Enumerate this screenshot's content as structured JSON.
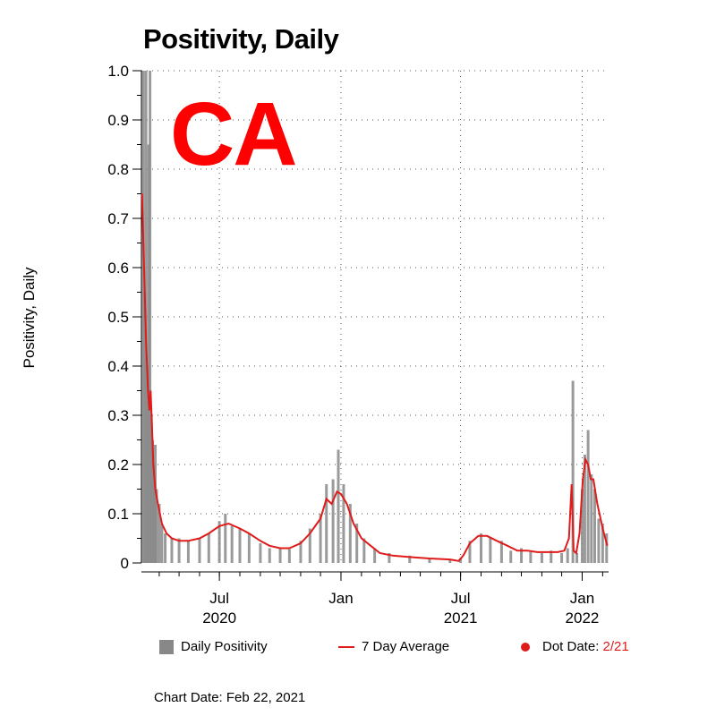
{
  "title": "Positivity, Daily",
  "state_label": "CA",
  "y_axis_label": "Positivity, Daily",
  "legend": {
    "daily_label": "Daily Positivity",
    "avg_label": "7 Day Average",
    "dot_label": "Dot Date:",
    "dot_date": "2/21"
  },
  "footer": "Chart Date: Feb 22, 2021",
  "colors": {
    "bars": "#888888",
    "average": "#e01b1b",
    "state": "#ff0000"
  },
  "chart_data": {
    "type": "bar",
    "title": "Positivity, Daily",
    "ylabel": "Positivity, Daily",
    "xlabel": "",
    "ylim": [
      0,
      1.0
    ],
    "xlim": [
      "2020-03-05",
      "2022-02-10"
    ],
    "yticks": [
      "0",
      "0.1",
      "0.2",
      "0.3",
      "0.4",
      "0.5",
      "0.6",
      "0.7",
      "0.8",
      "0.9",
      "1.0"
    ],
    "xticks": [
      {
        "date": "2020-07-01",
        "label": "Jul",
        "year": "2020"
      },
      {
        "date": "2021-01-01",
        "label": "Jan",
        "year": ""
      },
      {
        "date": "2021-07-01",
        "label": "Jul",
        "year": "2021"
      },
      {
        "date": "2022-01-01",
        "label": "Jan",
        "year": "2022"
      }
    ],
    "grid": true,
    "series": [
      {
        "name": "Daily Positivity",
        "kind": "bar",
        "points": [
          [
            "2020-03-08",
            1.0
          ],
          [
            "2020-03-10",
            0.55
          ],
          [
            "2020-03-12",
            1.0
          ],
          [
            "2020-03-14",
            0.4
          ],
          [
            "2020-03-16",
            0.85
          ],
          [
            "2020-03-18",
            1.0
          ],
          [
            "2020-03-20",
            0.3
          ],
          [
            "2020-03-22",
            0.25
          ],
          [
            "2020-03-24",
            0.2
          ],
          [
            "2020-03-26",
            0.24
          ],
          [
            "2020-03-28",
            0.15
          ],
          [
            "2020-04-01",
            0.12
          ],
          [
            "2020-04-05",
            0.08
          ],
          [
            "2020-04-10",
            0.06
          ],
          [
            "2020-04-20",
            0.05
          ],
          [
            "2020-05-01",
            0.05
          ],
          [
            "2020-05-15",
            0.045
          ],
          [
            "2020-06-01",
            0.05
          ],
          [
            "2020-06-15",
            0.06
          ],
          [
            "2020-07-01",
            0.085
          ],
          [
            "2020-07-10",
            0.1
          ],
          [
            "2020-07-20",
            0.075
          ],
          [
            "2020-08-01",
            0.07
          ],
          [
            "2020-08-15",
            0.06
          ],
          [
            "2020-09-01",
            0.04
          ],
          [
            "2020-09-15",
            0.03
          ],
          [
            "2020-10-01",
            0.03
          ],
          [
            "2020-10-15",
            0.028
          ],
          [
            "2020-11-01",
            0.045
          ],
          [
            "2020-11-15",
            0.07
          ],
          [
            "2020-12-01",
            0.1
          ],
          [
            "2020-12-10",
            0.16
          ],
          [
            "2020-12-20",
            0.17
          ],
          [
            "2020-12-28",
            0.23
          ],
          [
            "2021-01-05",
            0.16
          ],
          [
            "2021-01-15",
            0.12
          ],
          [
            "2021-01-25",
            0.08
          ],
          [
            "2021-02-05",
            0.05
          ],
          [
            "2021-02-21",
            0.03
          ],
          [
            "2021-03-15",
            0.02
          ],
          [
            "2021-04-15",
            0.015
          ],
          [
            "2021-05-15",
            0.01
          ],
          [
            "2021-06-15",
            0.008
          ],
          [
            "2021-07-01",
            0.01
          ],
          [
            "2021-07-15",
            0.045
          ],
          [
            "2021-08-01",
            0.06
          ],
          [
            "2021-08-15",
            0.05
          ],
          [
            "2021-09-01",
            0.045
          ],
          [
            "2021-09-15",
            0.025
          ],
          [
            "2021-10-01",
            0.03
          ],
          [
            "2021-10-15",
            0.022
          ],
          [
            "2021-11-01",
            0.02
          ],
          [
            "2021-11-15",
            0.025
          ],
          [
            "2021-12-01",
            0.02
          ],
          [
            "2021-12-10",
            0.03
          ],
          [
            "2021-12-18",
            0.37
          ],
          [
            "2021-12-24",
            0.02
          ],
          [
            "2022-01-01",
            0.15
          ],
          [
            "2022-01-05",
            0.22
          ],
          [
            "2022-01-10",
            0.27
          ],
          [
            "2022-01-15",
            0.18
          ],
          [
            "2022-01-20",
            0.15
          ],
          [
            "2022-01-26",
            0.09
          ],
          [
            "2022-02-01",
            0.08
          ],
          [
            "2022-02-07",
            0.06
          ]
        ]
      },
      {
        "name": "7 Day Average",
        "kind": "line",
        "points": [
          [
            "2020-03-06",
            0.75
          ],
          [
            "2020-03-08",
            0.65
          ],
          [
            "2020-03-10",
            0.55
          ],
          [
            "2020-03-12",
            0.45
          ],
          [
            "2020-03-15",
            0.35
          ],
          [
            "2020-03-17",
            0.31
          ],
          [
            "2020-03-19",
            0.35
          ],
          [
            "2020-03-21",
            0.28
          ],
          [
            "2020-03-23",
            0.2
          ],
          [
            "2020-03-26",
            0.15
          ],
          [
            "2020-03-30",
            0.12
          ],
          [
            "2020-04-05",
            0.08
          ],
          [
            "2020-04-12",
            0.06
          ],
          [
            "2020-04-20",
            0.05
          ],
          [
            "2020-05-01",
            0.045
          ],
          [
            "2020-05-15",
            0.045
          ],
          [
            "2020-06-01",
            0.05
          ],
          [
            "2020-06-15",
            0.06
          ],
          [
            "2020-07-01",
            0.075
          ],
          [
            "2020-07-15",
            0.08
          ],
          [
            "2020-08-01",
            0.07
          ],
          [
            "2020-08-15",
            0.06
          ],
          [
            "2020-09-01",
            0.045
          ],
          [
            "2020-09-15",
            0.035
          ],
          [
            "2020-10-01",
            0.03
          ],
          [
            "2020-10-15",
            0.03
          ],
          [
            "2020-11-01",
            0.04
          ],
          [
            "2020-11-15",
            0.06
          ],
          [
            "2020-12-01",
            0.09
          ],
          [
            "2020-12-10",
            0.13
          ],
          [
            "2020-12-18",
            0.12
          ],
          [
            "2020-12-26",
            0.145
          ],
          [
            "2021-01-01",
            0.14
          ],
          [
            "2021-01-10",
            0.12
          ],
          [
            "2021-01-20",
            0.08
          ],
          [
            "2021-02-01",
            0.05
          ],
          [
            "2021-02-15",
            0.035
          ],
          [
            "2021-03-01",
            0.02
          ],
          [
            "2021-03-20",
            0.015
          ],
          [
            "2021-04-15",
            0.012
          ],
          [
            "2021-05-15",
            0.009
          ],
          [
            "2021-06-15",
            0.007
          ],
          [
            "2021-06-28",
            0.004
          ],
          [
            "2021-07-05",
            0.015
          ],
          [
            "2021-07-15",
            0.04
          ],
          [
            "2021-07-28",
            0.055
          ],
          [
            "2021-08-10",
            0.055
          ],
          [
            "2021-08-25",
            0.045
          ],
          [
            "2021-09-10",
            0.035
          ],
          [
            "2021-09-25",
            0.025
          ],
          [
            "2021-10-10",
            0.025
          ],
          [
            "2021-10-25",
            0.022
          ],
          [
            "2021-11-10",
            0.022
          ],
          [
            "2021-11-25",
            0.022
          ],
          [
            "2021-12-05",
            0.025
          ],
          [
            "2021-12-12",
            0.05
          ],
          [
            "2021-12-16",
            0.16
          ],
          [
            "2021-12-19",
            0.025
          ],
          [
            "2021-12-23",
            0.02
          ],
          [
            "2021-12-28",
            0.06
          ],
          [
            "2022-01-02",
            0.17
          ],
          [
            "2022-01-06",
            0.21
          ],
          [
            "2022-01-10",
            0.2
          ],
          [
            "2022-01-14",
            0.17
          ],
          [
            "2022-01-18",
            0.17
          ],
          [
            "2022-01-24",
            0.12
          ],
          [
            "2022-02-01",
            0.07
          ],
          [
            "2022-02-08",
            0.035
          ]
        ]
      }
    ]
  }
}
